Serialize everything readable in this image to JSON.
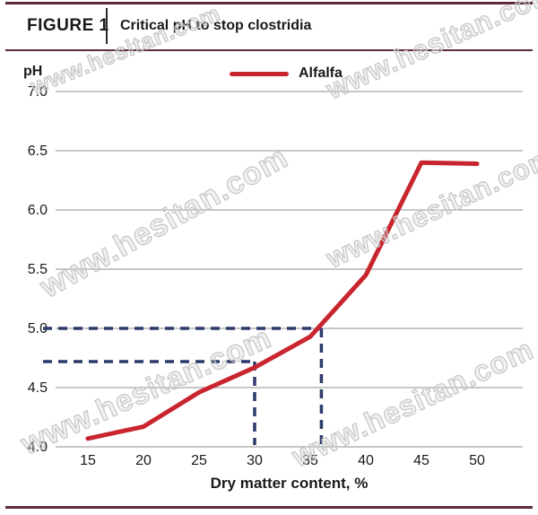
{
  "header": {
    "figure_label": "FIGURE 1",
    "title": "Critical pH to stop clostridia"
  },
  "watermark": {
    "text": "www.hesitan.com"
  },
  "colors": {
    "series_red": "#c9252e",
    "reference_navy": "#2c3a6a",
    "rule_maroon": "#5e2b37",
    "gridline_gray": "#8f8f8f"
  },
  "chart_data": {
    "type": "line",
    "title": "Critical pH to stop clostridia",
    "xlabel": "Dry matter content, %",
    "ylabel": "pH",
    "x_ticks": [
      15,
      20,
      25,
      30,
      35,
      40,
      45,
      50
    ],
    "y_ticks": [
      4.0,
      4.5,
      5.0,
      5.5,
      6.0,
      6.5,
      7.0
    ],
    "xlim": [
      12,
      54
    ],
    "ylim": [
      4.0,
      7.0
    ],
    "grid": "horizontal",
    "legend_position": "top-center",
    "series": [
      {
        "name": "Alfalfa",
        "color": "#c9252e",
        "x": [
          15,
          20,
          25,
          30,
          35,
          40,
          45,
          50
        ],
        "y": [
          4.07,
          4.17,
          4.46,
          4.67,
          4.93,
          5.45,
          6.4,
          6.39
        ]
      }
    ],
    "annotations": [
      {
        "type": "reference-dashed",
        "ph": 5.0,
        "dry_matter": 36,
        "color": "#2c3a6a"
      },
      {
        "type": "reference-dashed",
        "ph": 4.72,
        "dry_matter": 30,
        "color": "#2c3a6a"
      }
    ]
  }
}
